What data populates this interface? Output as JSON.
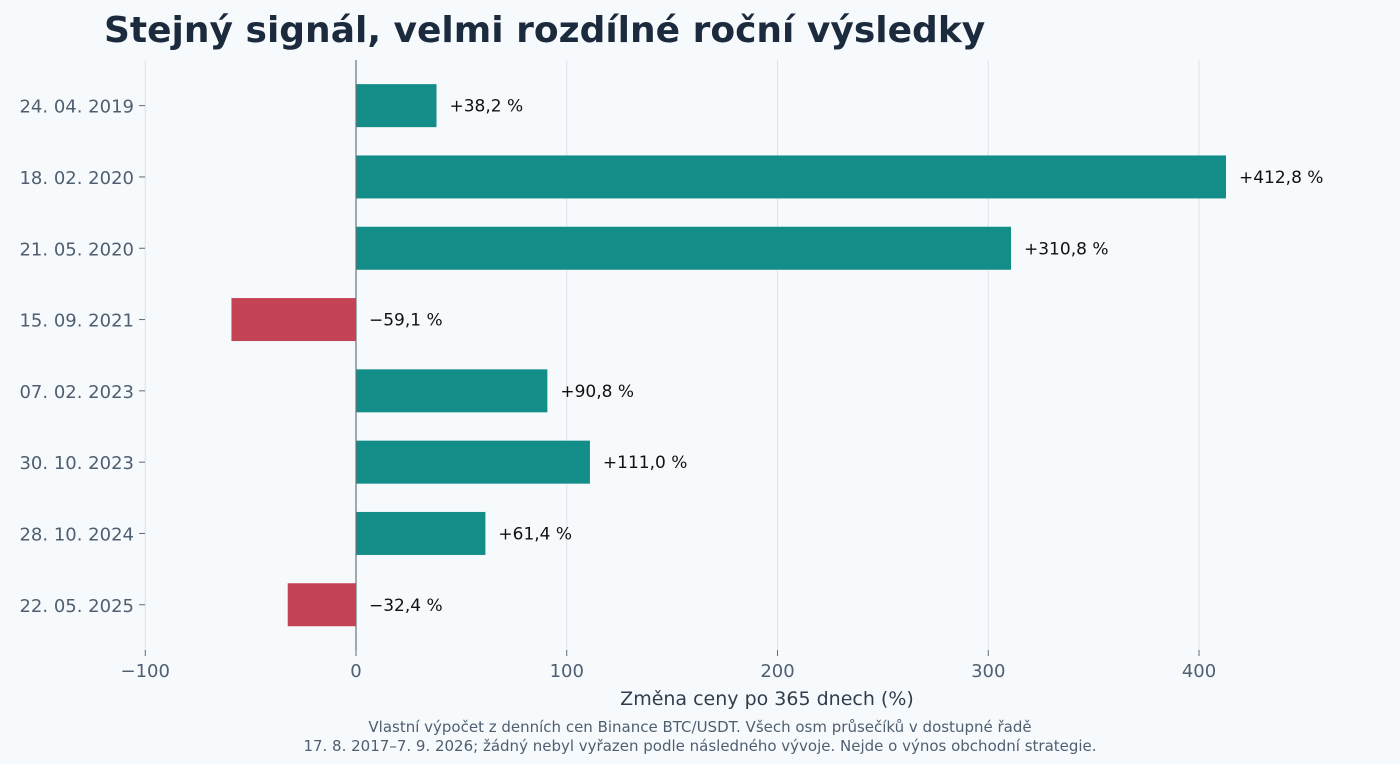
{
  "chart_data": {
    "type": "bar",
    "orientation": "horizontal",
    "title": "Stejný signál, velmi rozdílné roční výsledky",
    "xlabel": "Změna ceny po 365 dnech (%)",
    "ylabel": "",
    "categories": [
      "24. 04. 2019",
      "18. 02. 2020",
      "21. 05. 2020",
      "15. 09. 2021",
      "07. 02. 2023",
      "30. 10. 2023",
      "28. 10. 2024",
      "22. 05. 2025"
    ],
    "values": [
      38.2,
      412.8,
      310.8,
      -59.1,
      90.8,
      111.0,
      61.4,
      -32.4
    ],
    "data_labels": [
      "+38,2 %",
      "+412,8 %",
      "+310,8 %",
      "−59,1 %",
      "+90,8 %",
      "+111,0 %",
      "+61,4 %",
      "−32,4 %"
    ],
    "xlim": [
      -100,
      480
    ],
    "xticks": [
      -100,
      0,
      100,
      200,
      300,
      400
    ],
    "xtick_labels": [
      "−100",
      "0",
      "100",
      "200",
      "300",
      "400"
    ],
    "grid": "vertical",
    "legend": "none",
    "colors": {
      "positive": "#138d88",
      "negative": "#c44455"
    },
    "footnote": [
      "Vlastní výpočet z denních cen Binance BTC/USDT. Všech osm průsečíků v dostupné řadě",
      "17. 8. 2017–7. 9. 2026; žádný nebyl vyřazen podle následného vývoje. Nejde o výnos obchodní strategie."
    ]
  }
}
